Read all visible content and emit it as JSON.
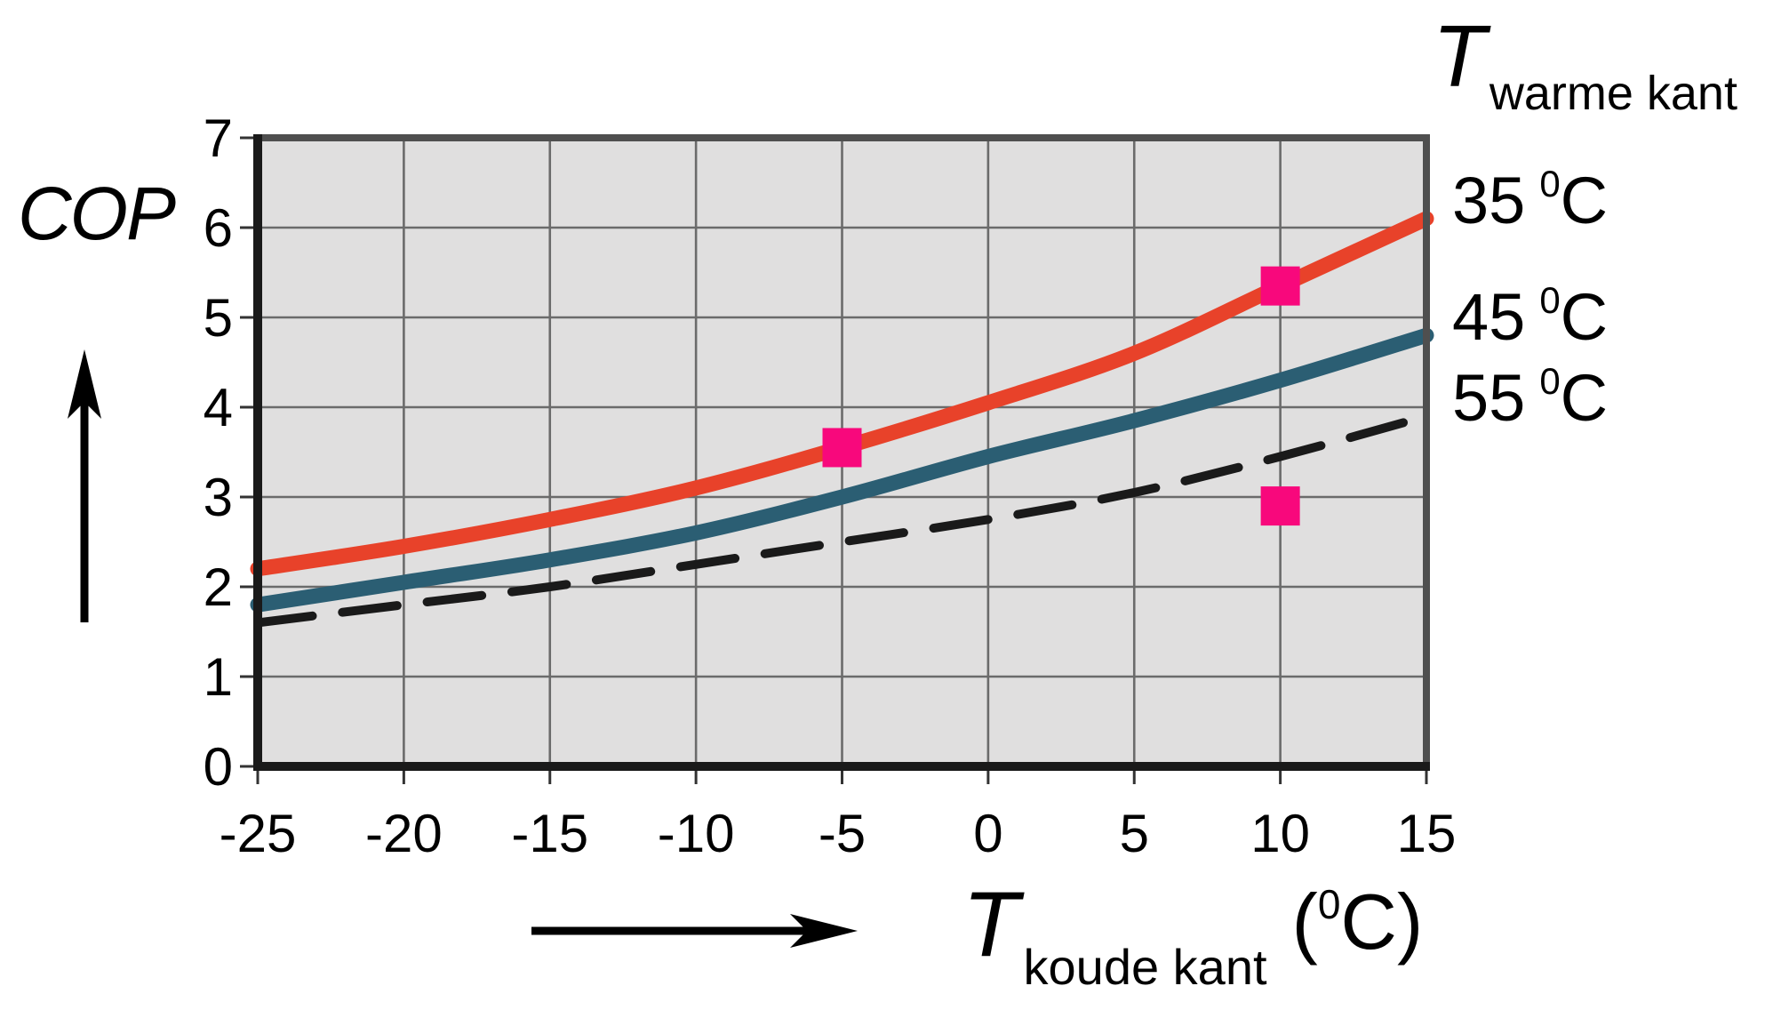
{
  "chart_data": {
    "type": "line",
    "title": "",
    "ylabel": "COP",
    "xlabel_main": "T",
    "xlabel_sub": "koude kant",
    "xlabel_unit_open": "(",
    "xlabel_unit_degree": "0",
    "xlabel_unit_close": "C)",
    "legend_title_main": "T",
    "legend_title_sub": "warme kant",
    "legend_position": "right",
    "grid": true,
    "xlim": [
      -25,
      15
    ],
    "ylim": [
      0,
      7
    ],
    "x_ticks": [
      -25,
      -20,
      -15,
      -10,
      -5,
      0,
      5,
      10,
      15
    ],
    "y_ticks": [
      0,
      1,
      2,
      3,
      4,
      5,
      6,
      7
    ],
    "x": [
      -25,
      -20,
      -15,
      -10,
      -5,
      0,
      5,
      10,
      15
    ],
    "series": [
      {
        "name": "35 °C",
        "label_value": "35",
        "label_degree": "0",
        "label_unit": "C",
        "color": "#e8422a",
        "line_style": "solid",
        "values": [
          2.2,
          2.45,
          2.75,
          3.1,
          3.55,
          4.05,
          4.6,
          5.35,
          6.1
        ]
      },
      {
        "name": "45 °C",
        "label_value": "45",
        "label_degree": "0",
        "label_unit": "C",
        "color": "#2b5e73",
        "line_style": "solid",
        "values": [
          1.8,
          2.05,
          2.3,
          2.6,
          3.0,
          3.45,
          3.85,
          4.3,
          4.8
        ]
      },
      {
        "name": "55 °C",
        "label_value": "55",
        "label_degree": "0",
        "label_unit": "C",
        "color": "#1a1a1a",
        "line_style": "dashed",
        "values": [
          1.6,
          1.8,
          2.0,
          2.25,
          2.5,
          2.75,
          3.05,
          3.45,
          3.9
        ]
      }
    ],
    "markers": {
      "shape": "square",
      "color": "#f8087c",
      "points": [
        {
          "x": -5,
          "y": 3.55
        },
        {
          "x": 10,
          "y": 5.35
        },
        {
          "x": 10,
          "y": 2.9
        }
      ]
    },
    "plot_colors": {
      "background": "#e0dfdf",
      "gridline": "#6b6b6b",
      "frame": "#4f4f4f",
      "axis": "#1a1a1a"
    }
  }
}
